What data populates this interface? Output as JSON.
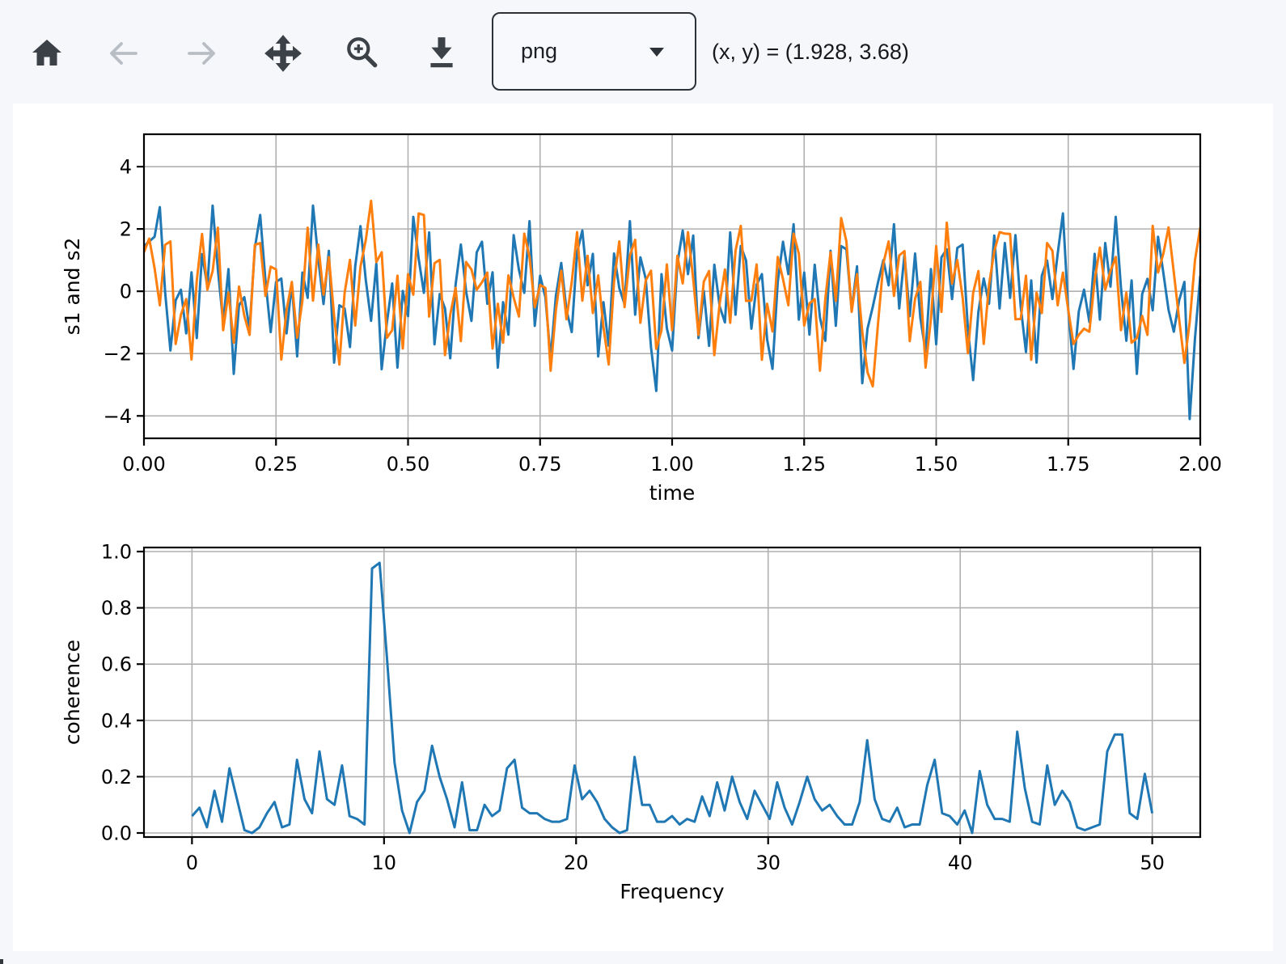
{
  "toolbar": {
    "buttons": [
      {
        "id": "home",
        "icon": "home-icon",
        "enabled": true
      },
      {
        "id": "back",
        "icon": "arrow-left-icon",
        "enabled": false
      },
      {
        "id": "forward",
        "icon": "arrow-right-icon",
        "enabled": false
      },
      {
        "id": "pan",
        "icon": "move-arrows-icon",
        "enabled": true
      },
      {
        "id": "zoom",
        "icon": "magnifier-plus-icon",
        "enabled": true
      },
      {
        "id": "download",
        "icon": "download-icon",
        "enabled": true
      }
    ],
    "format_selected": "png",
    "coordinates": "(x, y) = (1.928, 3.68)"
  },
  "colors": {
    "page_background": "#f5f7fb",
    "figure_background": "#ffffff",
    "icon_enabled": "#3c4148",
    "icon_disabled": "#b9bdc4",
    "grid": "#b0b0b0",
    "spine": "#000000",
    "series_blue": "#1f77b4",
    "series_orange": "#ff7f0e"
  },
  "chart_data": [
    {
      "type": "line",
      "title": "",
      "xlabel": "time",
      "ylabel": "s1 and s2",
      "grid": true,
      "legend": "none",
      "xlim": [
        0,
        2
      ],
      "ylim": [
        -4.72,
        5.04
      ],
      "xticks": [
        {
          "v": 0.0,
          "label": "0.00"
        },
        {
          "v": 0.25,
          "label": "0.25"
        },
        {
          "v": 0.5,
          "label": "0.50"
        },
        {
          "v": 0.75,
          "label": "0.75"
        },
        {
          "v": 1.0,
          "label": "1.00"
        },
        {
          "v": 1.25,
          "label": "1.25"
        },
        {
          "v": 1.5,
          "label": "1.50"
        },
        {
          "v": 1.75,
          "label": "1.75"
        },
        {
          "v": 2.0,
          "label": "2.00"
        }
      ],
      "yticks": [
        {
          "v": -4,
          "label": "−4"
        },
        {
          "v": -2,
          "label": "−2"
        },
        {
          "v": 0,
          "label": "0"
        },
        {
          "v": 2,
          "label": "2"
        },
        {
          "v": 4,
          "label": "4"
        }
      ],
      "x_start": 0,
      "x_step": 0.01,
      "series": [
        {
          "name": "s1",
          "color": "#1f77b4",
          "values": [
            1.45,
            1.6,
            1.75,
            2.7,
            -0.01,
            -1.9,
            -0.29,
            0.05,
            -1.35,
            0.61,
            -1.5,
            1.19,
            0.15,
            2.75,
            0.69,
            -1.0,
            0.71,
            -2.65,
            -0.45,
            -0.19,
            -1.2,
            1.39,
            2.45,
            0.35,
            -1.31,
            0.3,
            0.41,
            -1.35,
            0.25,
            -2.09,
            0.6,
            -0.21,
            2.75,
            1.05,
            -0.41,
            1.3,
            -2.29,
            -0.45,
            -0.55,
            -1.79,
            0.8,
            2.09,
            0.35,
            -0.95,
            0.89,
            -2.5,
            -0.99,
            0.25,
            -2.45,
            0.01,
            -0.8,
            2.39,
            1.05,
            -0.05,
            1.89,
            -1.7,
            -0.09,
            -0.55,
            -2.15,
            0.21,
            1.5,
            -0.01,
            -0.95,
            1.25,
            1.59,
            -0.4,
            0.61,
            -2.45,
            -0.35,
            -1.39,
            1.8,
            0.69,
            -0.05,
            2.25,
            -1.11,
            0.5,
            -0.19,
            -2.15,
            -0.15,
            0.91,
            -0.6,
            -1.31,
            1.25,
            1.95,
            0.19,
            1.2,
            -2.09,
            -0.35,
            -1.75,
            1.21,
            0.1,
            -0.41,
            2.25,
            -0.75,
            1.09,
            0.4,
            -1.8,
            -3.2,
            0.55,
            -1.19,
            -1.9,
            0.89,
            1.95,
            0.55,
            1.79,
            -1.5,
            0.01,
            -1.75,
            0.85,
            -0.49,
            -1.0,
            1.89,
            -0.75,
            1.45,
            0.99,
            -1.2,
            0.21,
            0.55,
            -1.55,
            -2.49,
            0.3,
            1.59,
            0.55,
            2.15,
            -0.91,
            0.6,
            -1.39,
            0.85,
            -0.85,
            -1.59,
            1.3,
            -1.11,
            1.45,
            1.35,
            -0.61,
            0.8,
            -2.95,
            -1.2,
            -0.5,
            0.3,
            1.0,
            0.19,
            2.15,
            -0.55,
            1.19,
            -0.8,
            1.21,
            -0.85,
            -1.95,
            0.71,
            -1.7,
            1.09,
            1.35,
            -0.25,
            1.39,
            1.5,
            -1.19,
            -2.85,
            -0.65,
            0.41,
            -0.4,
            1.79,
            -0.55,
            1.55,
            -0.21,
            1.8,
            -0.49,
            -1.95,
            0.35,
            -2.29,
            0.5,
            0.99,
            -0.25,
            1.2,
            2.5,
            -0.6,
            -2.49,
            -0.65,
            0.05,
            -0.99,
            1.2,
            -0.91,
            1.55,
            0.15,
            2.39,
            0.1,
            -1.59,
            0.35,
            -2.65,
            -0.09,
            0.4,
            -0.61,
            1.75,
            0.6,
            -0.6,
            -1.3,
            -0.29,
            0.3,
            -4.1,
            -1.5,
            0.5
          ]
        },
        {
          "name": "s2",
          "color": "#ff7f0e",
          "values": [
            1.25,
            1.69,
            0.75,
            -0.45,
            1.49,
            1.6,
            -1.69,
            -0.75,
            -0.25,
            -2.19,
            0.35,
            1.84,
            0.05,
            0.65,
            2.04,
            -1.25,
            -0.04,
            -1.65,
            0.15,
            -0.79,
            -1.4,
            1.49,
            1.55,
            -0.15,
            0.79,
            0.7,
            -2.19,
            -0.6,
            0.3,
            -1.49,
            -0.3,
            2.04,
            -0.3,
            1.5,
            -0.11,
            1.1,
            -0.79,
            -2.35,
            -0.05,
            1.01,
            -1.1,
            0.79,
            1.65,
            2.9,
            0.94,
            1.25,
            -1.49,
            -1.25,
            0.5,
            -1.84,
            0.55,
            -0.11,
            2.5,
            2.45,
            -0.81,
            0.9,
            1.01,
            -2.05,
            -0.75,
            0.11,
            -1.6,
            0.94,
            0.7,
            0.05,
            0.29,
            0.6,
            -1.84,
            -0.4,
            -1.65,
            0.51,
            -0.2,
            -0.81,
            1.85,
            1.1,
            -0.51,
            0.2,
            0.11,
            -2.55,
            -0.6,
            0.66,
            -0.9,
            0.29,
            1.9,
            -0.3,
            1.14,
            -0.7,
            0.51,
            -1.15,
            -2.35,
            0.31,
            1.6,
            -0.51,
            1.15,
            1.65,
            -1.01,
            0.35,
            0.66,
            -1.85,
            -1.25,
            0.86,
            -1.25,
            1.14,
            0.25,
            1.9,
            0.39,
            -1.4,
            0.31,
            0.65,
            -2.05,
            -0.39,
            0.7,
            -1.01,
            1.3,
            2.1,
            -0.31,
            -0.3,
            0.86,
            -2.2,
            -0.4,
            -1.29,
            1.1,
            0.39,
            -0.45,
            1.85,
            1.2,
            -1.1,
            -0.39,
            -0.25,
            -2.55,
            -0.24,
            1.25,
            -0.31,
            2.35,
            1.6,
            -0.66,
            0.55,
            -1.29,
            -2.6,
            -3.05,
            -1.0,
            0.9,
            1.6,
            -0.15,
            1.15,
            1.29,
            -1.6,
            -0.24,
            0.3,
            -2.45,
            -0.89,
            1.45,
            -0.66,
            2.2,
            0.25,
            1.0,
            -0.2,
            -1.99,
            -0.05,
            0.65,
            -1.69,
            0.2,
            1.29,
            1.9,
            1.85,
            1.84,
            -0.9,
            -0.89,
            0.5,
            -2.2,
            -0.04,
            -0.7,
            1.55,
            1.3,
            -0.45,
            0.6,
            -0.6,
            -1.69,
            -1.4,
            -1.2,
            -1.3,
            0.35,
            1.4,
            0.05,
            0.65,
            1.1,
            -1.25,
            -0.04,
            -1.65,
            -1.5,
            -0.79,
            -1.4,
            2.1,
            0.6,
            1.2,
            2.05,
            0.6,
            -0.9,
            -2.3,
            -1.0,
            1.0,
            2.05
          ]
        }
      ]
    },
    {
      "type": "line",
      "title": "",
      "xlabel": "Frequency",
      "ylabel": "coherence",
      "grid": true,
      "legend": "none",
      "xlim": [
        -2.5,
        52.5
      ],
      "ylim": [
        -0.0144,
        1.0144
      ],
      "xticks": [
        {
          "v": 0,
          "label": "0"
        },
        {
          "v": 10,
          "label": "10"
        },
        {
          "v": 20,
          "label": "20"
        },
        {
          "v": 30,
          "label": "30"
        },
        {
          "v": 40,
          "label": "40"
        },
        {
          "v": 50,
          "label": "50"
        }
      ],
      "yticks": [
        {
          "v": 0.0,
          "label": "0.0"
        },
        {
          "v": 0.2,
          "label": "0.2"
        },
        {
          "v": 0.4,
          "label": "0.4"
        },
        {
          "v": 0.6,
          "label": "0.6"
        },
        {
          "v": 0.8,
          "label": "0.8"
        },
        {
          "v": 1.0,
          "label": "1.0"
        }
      ],
      "x_start": 0,
      "x_step": 0.390625,
      "series": [
        {
          "name": "coherence",
          "color": "#1f77b4",
          "values": [
            0.06,
            0.09,
            0.02,
            0.15,
            0.04,
            0.23,
            0.12,
            0.01,
            0.0,
            0.02,
            0.07,
            0.11,
            0.02,
            0.03,
            0.26,
            0.12,
            0.07,
            0.29,
            0.12,
            0.1,
            0.24,
            0.06,
            0.05,
            0.03,
            0.94,
            0.96,
            0.62,
            0.25,
            0.08,
            0.0,
            0.11,
            0.15,
            0.31,
            0.2,
            0.12,
            0.02,
            0.18,
            0.01,
            0.01,
            0.1,
            0.06,
            0.08,
            0.23,
            0.26,
            0.09,
            0.07,
            0.07,
            0.05,
            0.04,
            0.04,
            0.05,
            0.24,
            0.12,
            0.15,
            0.11,
            0.05,
            0.02,
            0.0,
            0.01,
            0.27,
            0.1,
            0.1,
            0.04,
            0.04,
            0.06,
            0.03,
            0.05,
            0.04,
            0.13,
            0.06,
            0.18,
            0.08,
            0.2,
            0.11,
            0.05,
            0.15,
            0.1,
            0.05,
            0.18,
            0.09,
            0.03,
            0.11,
            0.2,
            0.12,
            0.08,
            0.1,
            0.06,
            0.03,
            0.03,
            0.11,
            0.33,
            0.12,
            0.05,
            0.04,
            0.09,
            0.02,
            0.03,
            0.03,
            0.17,
            0.26,
            0.07,
            0.06,
            0.03,
            0.08,
            0.0,
            0.22,
            0.1,
            0.05,
            0.05,
            0.04,
            0.36,
            0.16,
            0.04,
            0.03,
            0.24,
            0.1,
            0.15,
            0.11,
            0.02,
            0.01,
            0.02,
            0.03,
            0.29,
            0.35,
            0.35,
            0.07,
            0.05,
            0.21,
            0.07
          ]
        }
      ]
    }
  ]
}
